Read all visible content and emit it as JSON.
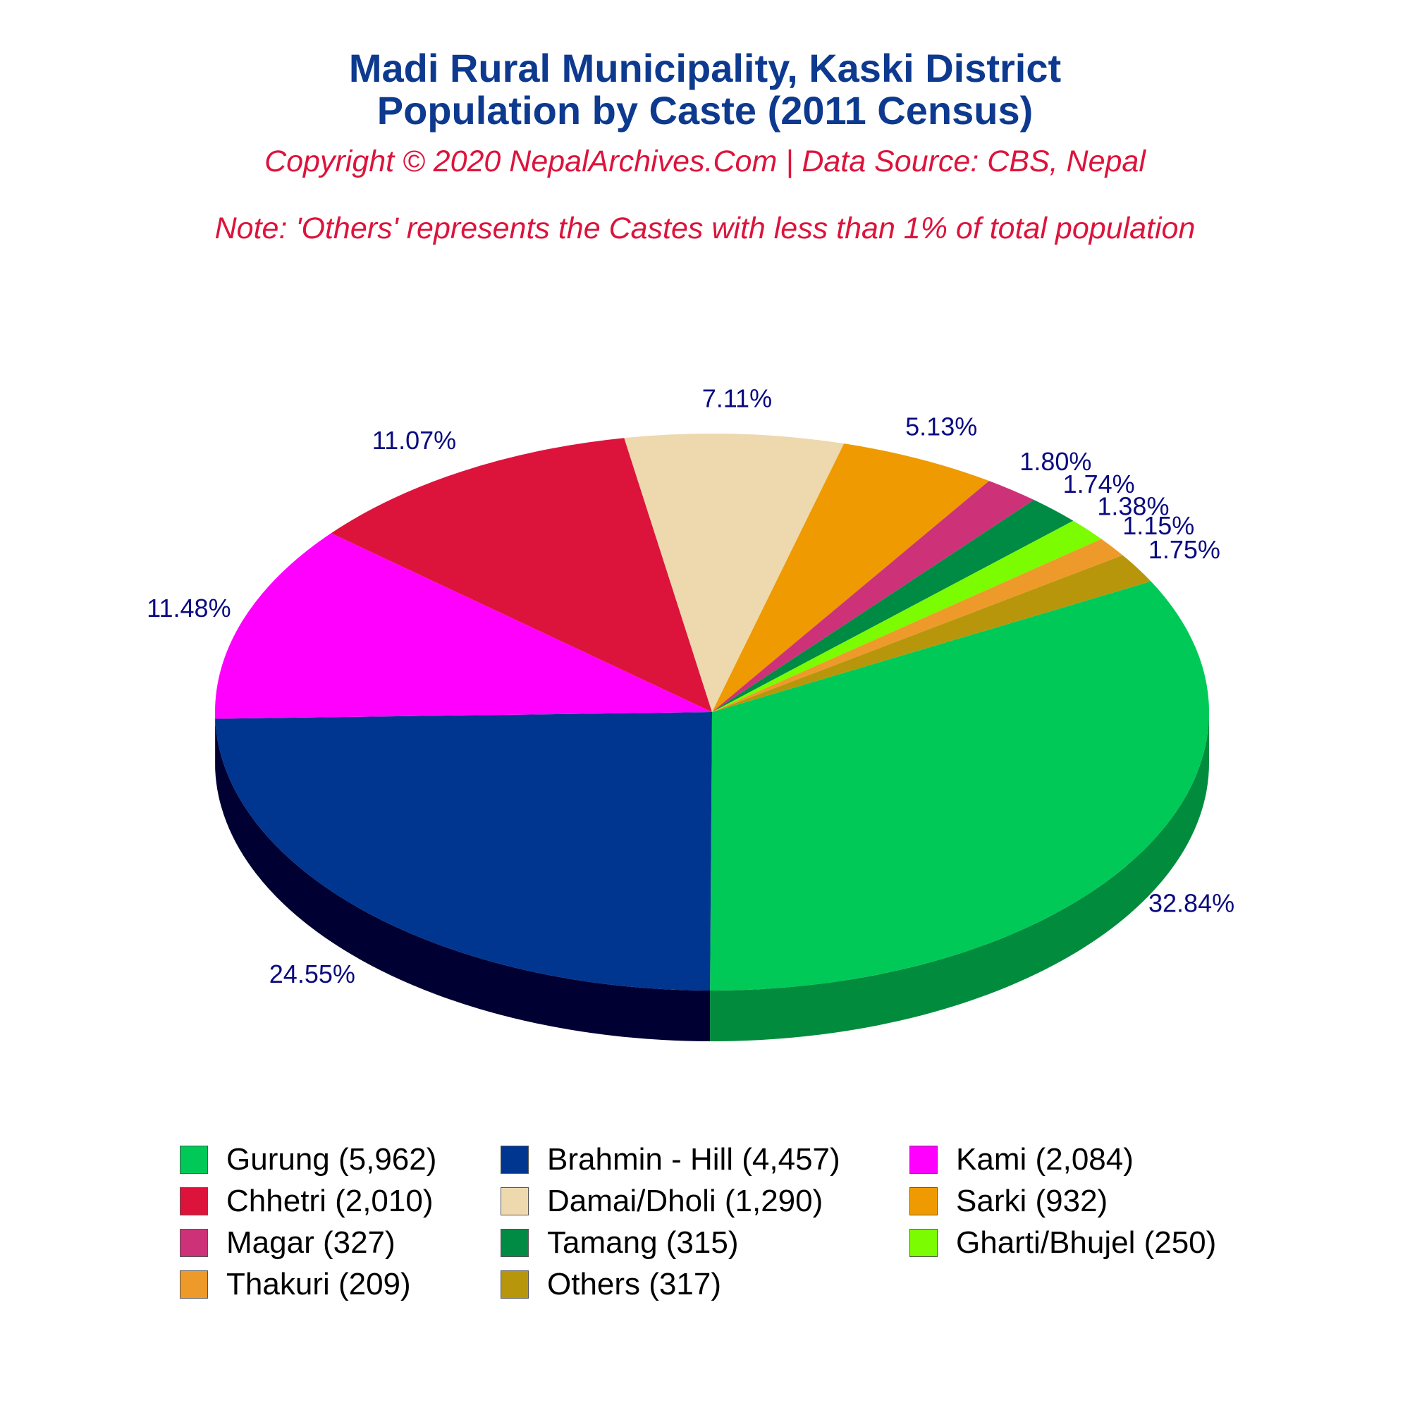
{
  "header": {
    "title_line1": "Madi Rural Municipality, Kaski District",
    "title_line2": "Population by Caste (2011 Census)",
    "copyright": "Copyright © 2020 NepalArchives.Com | Data Source: CBS, Nepal",
    "note": "Note: 'Others' represents the Castes with less than 1% of total population"
  },
  "chart_data": {
    "type": "pie",
    "style": "3d",
    "title": "Madi Rural Municipality, Kaski District Population by Caste (2011 Census)",
    "slices": [
      {
        "name": "Gurung",
        "value": 5962,
        "percent_label": "32.84%",
        "legend_label": "Gurung (5,962)",
        "color": "#00c957",
        "side_color": "#008c3c"
      },
      {
        "name": "Brahmin - Hill",
        "value": 4457,
        "percent_label": "24.55%",
        "legend_label": "Brahmin - Hill (4,457)",
        "color": "#00368f",
        "side_color": "#000033"
      },
      {
        "name": "Kami",
        "value": 2084,
        "percent_label": "11.48%",
        "legend_label": "Kami (2,084)",
        "color": "#ff00ff",
        "side_color": "#a500a5"
      },
      {
        "name": "Chhetri",
        "value": 2010,
        "percent_label": "11.07%",
        "legend_label": "Chhetri (2,010)",
        "color": "#dc143c",
        "side_color": "#800000"
      },
      {
        "name": "Damai/Dholi",
        "value": 1290,
        "percent_label": "7.11%",
        "legend_label": "Damai/Dholi (1,290)",
        "color": "#eed8ae",
        "side_color": "#8b7b52"
      },
      {
        "name": "Sarki",
        "value": 932,
        "percent_label": "5.13%",
        "legend_label": "Sarki (932)",
        "color": "#ee9a00",
        "side_color": "#8b4500"
      },
      {
        "name": "Magar",
        "value": 327,
        "percent_label": "1.80%",
        "legend_label": "Magar (327)",
        "color": "#cd3278",
        "side_color": "#8b1a4f"
      },
      {
        "name": "Tamang",
        "value": 315,
        "percent_label": "1.74%",
        "legend_label": "Tamang (315)",
        "color": "#008b45",
        "side_color": "#005028"
      },
      {
        "name": "Gharti/Bhujel",
        "value": 250,
        "percent_label": "1.38%",
        "legend_label": "Gharti/Bhujel (250)",
        "color": "#7cfc00",
        "side_color": "#4a9600"
      },
      {
        "name": "Thakuri",
        "value": 209,
        "percent_label": "1.15%",
        "legend_label": "Thakuri (209)",
        "color": "#ee9a2a",
        "side_color": "#8b5a14"
      },
      {
        "name": "Others",
        "value": 317,
        "percent_label": "1.75%",
        "legend_label": "Others (317)",
        "color": "#b8960b",
        "side_color": "#6b5706"
      }
    ],
    "legend_position": "bottom",
    "start_angle_deg": 62,
    "direction": "clockwise"
  }
}
